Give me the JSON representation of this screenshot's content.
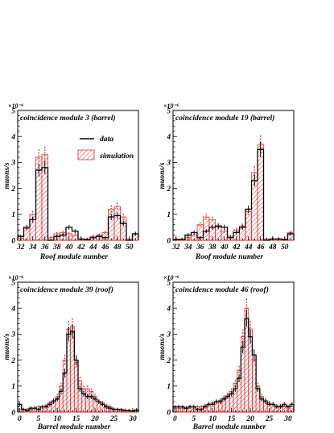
{
  "chart_data": [
    {
      "type": "bar",
      "title": "coincidence module 3 (barrel)",
      "xlabel": "Roof module number",
      "ylabel": "muons/s",
      "y_exponent": "×10⁻⁶",
      "xlim": [
        31.5,
        51.5
      ],
      "ylim": [
        0,
        5
      ],
      "x_ticks": [
        "32",
        "34",
        "36",
        "38",
        "40",
        "42",
        "44",
        "46",
        "48",
        "50"
      ],
      "y_ticks": [
        "0",
        "1",
        "2",
        "3",
        "4",
        "5"
      ],
      "legend": {
        "data": "data",
        "simulation": "simulation",
        "position": "upper-right"
      },
      "bins": [
        32,
        33,
        34,
        35,
        36,
        37,
        38,
        39,
        40,
        41,
        42,
        43,
        44,
        45,
        46,
        47,
        48,
        49,
        50,
        51
      ],
      "series": [
        {
          "name": "data",
          "values": [
            0.15,
            0.5,
            0.8,
            2.7,
            2.8,
            0.0,
            0.15,
            0.2,
            0.5,
            0.35,
            0.05,
            0.02,
            0.1,
            0.15,
            0.1,
            0.9,
            0.95,
            0.65,
            0.0,
            0.25
          ]
        },
        {
          "name": "simulation",
          "values": [
            0.08,
            0.45,
            1.0,
            3.2,
            3.3,
            0.1,
            0.25,
            0.3,
            0.25,
            0.18,
            0.05,
            0.05,
            0.15,
            0.2,
            0.3,
            1.2,
            1.3,
            0.9,
            0.05,
            0.25
          ]
        }
      ]
    },
    {
      "type": "bar",
      "title": "coincidence module 19 (barrel)",
      "xlabel": "Roof module number",
      "ylabel": "muons/s",
      "y_exponent": "×10⁻⁶",
      "xlim": [
        31.5,
        51.5
      ],
      "ylim": [
        0,
        5
      ],
      "x_ticks": [
        "32",
        "34",
        "36",
        "38",
        "40",
        "42",
        "44",
        "46",
        "48",
        "50"
      ],
      "y_ticks": [
        "0",
        "1",
        "2",
        "3",
        "4",
        "5"
      ],
      "bins": [
        32,
        33,
        34,
        35,
        36,
        37,
        38,
        39,
        40,
        41,
        42,
        43,
        44,
        45,
        46,
        47,
        48,
        49,
        50,
        51
      ],
      "series": [
        {
          "name": "data",
          "values": [
            0.02,
            0.02,
            0.2,
            0.3,
            0.1,
            0.35,
            0.5,
            0.55,
            0.5,
            0.1,
            0.3,
            0.5,
            1.2,
            2.3,
            3.5,
            0.0,
            0.05,
            0.05,
            0.02,
            0.25
          ]
        },
        {
          "name": "simulation",
          "values": [
            0.05,
            0.05,
            0.1,
            0.2,
            0.6,
            0.9,
            0.8,
            0.5,
            0.35,
            0.15,
            0.4,
            0.55,
            1.1,
            2.6,
            3.7,
            0.05,
            0.05,
            0.05,
            0.05,
            0.3
          ]
        }
      ]
    },
    {
      "type": "bar",
      "title": "coincidence module 39 (roof)",
      "xlabel": "Barrel module number",
      "ylabel": "muons/s",
      "y_exponent": "×10⁻⁶",
      "xlim": [
        -0.5,
        31.5
      ],
      "ylim": [
        0,
        5
      ],
      "x_ticks": [
        "0",
        "5",
        "10",
        "15",
        "20",
        "25",
        "30"
      ],
      "y_ticks": [
        "0",
        "1",
        "2",
        "3",
        "4",
        "5"
      ],
      "bins": [
        0,
        1,
        2,
        3,
        4,
        5,
        6,
        7,
        8,
        9,
        10,
        11,
        12,
        13,
        14,
        15,
        16,
        17,
        18,
        19,
        20,
        21,
        22,
        23,
        24,
        25,
        26,
        27,
        28,
        29,
        30,
        31
      ],
      "series": [
        {
          "name": "data",
          "values": [
            0.3,
            0.1,
            0.05,
            0.15,
            0.15,
            0.1,
            0.2,
            0.2,
            0.3,
            0.4,
            0.5,
            0.8,
            1.5,
            3.0,
            3.1,
            2.0,
            0.9,
            0.7,
            0.6,
            0.6,
            0.5,
            0.4,
            0.3,
            0.2,
            0.15,
            0.1,
            0.1,
            0.08,
            0.05,
            0.05,
            0.03,
            0.08
          ]
        },
        {
          "name": "simulation",
          "values": [
            0.1,
            0.1,
            0.1,
            0.1,
            0.15,
            0.2,
            0.2,
            0.25,
            0.35,
            0.45,
            0.6,
            1.0,
            2.0,
            3.2,
            3.3,
            1.9,
            1.2,
            0.9,
            0.9,
            0.8,
            0.6,
            0.4,
            0.35,
            0.25,
            0.2,
            0.12,
            0.1,
            0.1,
            0.08,
            0.06,
            0.05,
            0.05
          ]
        }
      ]
    },
    {
      "type": "bar",
      "title": "coincidence module 46 (roof)",
      "xlabel": "Barrel module number",
      "ylabel": "muons/s",
      "y_exponent": "×10⁻⁶",
      "xlim": [
        -0.5,
        31.5
      ],
      "ylim": [
        0,
        5
      ],
      "x_ticks": [
        "0",
        "5",
        "10",
        "15",
        "20",
        "25",
        "30"
      ],
      "y_ticks": [
        "0",
        "1",
        "2",
        "3",
        "4",
        "5"
      ],
      "bins": [
        0,
        1,
        2,
        3,
        4,
        5,
        6,
        7,
        8,
        9,
        10,
        11,
        12,
        13,
        14,
        15,
        16,
        17,
        18,
        19,
        20,
        21,
        22,
        23,
        24,
        25,
        26,
        27,
        28,
        29,
        30,
        31
      ],
      "series": [
        {
          "name": "data",
          "values": [
            0.2,
            0.2,
            0.2,
            0.15,
            0.2,
            0.2,
            0.1,
            0.1,
            0.2,
            0.3,
            0.3,
            0.4,
            0.4,
            0.5,
            0.6,
            0.7,
            0.9,
            1.3,
            2.5,
            3.6,
            2.9,
            2.2,
            0.9,
            0.5,
            0.4,
            0.3,
            0.3,
            0.2,
            0.2,
            0.3,
            0.2,
            0.3
          ]
        },
        {
          "name": "simulation",
          "values": [
            0.15,
            0.15,
            0.15,
            0.15,
            0.2,
            0.2,
            0.2,
            0.2,
            0.25,
            0.3,
            0.35,
            0.4,
            0.45,
            0.55,
            0.65,
            0.8,
            1.1,
            1.6,
            2.9,
            4.0,
            3.2,
            2.0,
            1.0,
            0.6,
            0.45,
            0.35,
            0.3,
            0.25,
            0.25,
            0.2,
            0.2,
            0.2
          ]
        }
      ]
    }
  ]
}
